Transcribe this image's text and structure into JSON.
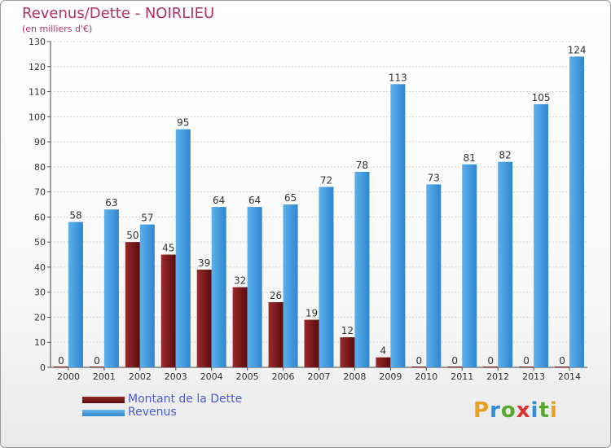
{
  "brand": {
    "logo_text": "Proxiti"
  },
  "chart_data": {
    "type": "bar",
    "title": "Revenus/Dette - NOIRLIEU",
    "subtitle": "(en milliers d'€)",
    "categories": [
      "2000",
      "2001",
      "2002",
      "2003",
      "2004",
      "2005",
      "2006",
      "2007",
      "2008",
      "2009",
      "2010",
      "2011",
      "2012",
      "2013",
      "2014"
    ],
    "series": [
      {
        "name": "Montant de la Dette",
        "color": "#7a1414",
        "values": [
          0,
          0,
          50,
          45,
          39,
          32,
          26,
          19,
          12,
          4,
          0,
          0,
          0,
          0,
          0
        ]
      },
      {
        "name": "Revenus",
        "color": "#3d98de",
        "values": [
          58,
          63,
          57,
          95,
          64,
          64,
          65,
          72,
          78,
          113,
          73,
          81,
          82,
          105,
          124
        ]
      }
    ],
    "ylim": [
      0,
      130
    ],
    "yticks": [
      0,
      10,
      20,
      30,
      40,
      50,
      60,
      70,
      80,
      90,
      100,
      110,
      120,
      130
    ],
    "grid": true,
    "legend": "bottom-left"
  }
}
